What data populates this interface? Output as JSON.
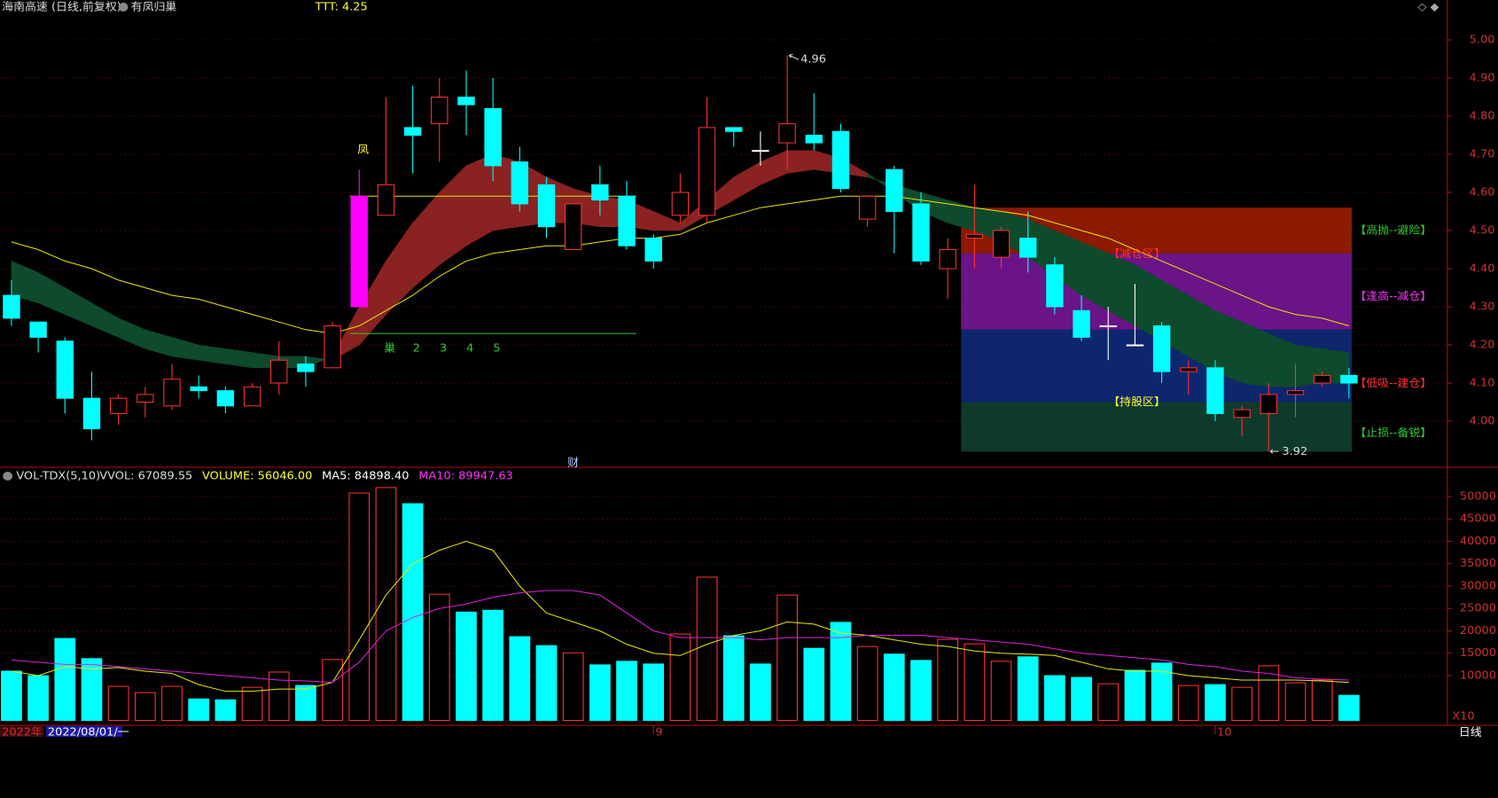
{
  "chart_data": [
    {
      "type": "candlestick",
      "title": "海南高速 (日线,前复权)",
      "subtitle": "有凤归巢",
      "indicator": "TTT: 4.25",
      "open": [
        4.33,
        4.26,
        4.21,
        4.06,
        4.02,
        4.05,
        4.04,
        4.09,
        4.08,
        4.04,
        4.1,
        4.15,
        4.14,
        4.3,
        4.54,
        4.77,
        4.78,
        4.85,
        4.82,
        4.68,
        4.62,
        4.45,
        4.62,
        4.59,
        4.48,
        4.54,
        4.54,
        4.77,
        4.71,
        4.73,
        4.75,
        4.76,
        4.53,
        4.66,
        4.57,
        4.4,
        4.48,
        4.43,
        4.48,
        4.41,
        4.29,
        4.25,
        4.2,
        4.25,
        4.13,
        4.14,
        4.01,
        4.02,
        4.07,
        4.1,
        4.12
      ],
      "high": [
        4.37,
        4.26,
        4.22,
        4.13,
        4.07,
        4.09,
        4.15,
        4.12,
        4.09,
        4.1,
        4.21,
        4.17,
        4.26,
        4.66,
        4.85,
        4.88,
        4.9,
        4.92,
        4.9,
        4.72,
        4.64,
        4.57,
        4.67,
        4.63,
        4.49,
        4.65,
        4.85,
        4.77,
        4.76,
        4.96,
        4.86,
        4.78,
        4.59,
        4.67,
        4.6,
        4.48,
        4.62,
        4.51,
        4.55,
        4.43,
        4.33,
        4.3,
        4.36,
        4.26,
        4.16,
        4.16,
        4.04,
        4.1,
        4.15,
        4.13,
        4.14
      ],
      "low": [
        4.25,
        4.18,
        4.02,
        3.95,
        3.99,
        4.01,
        4.03,
        4.06,
        4.02,
        4.04,
        4.07,
        4.09,
        4.14,
        4.3,
        4.54,
        4.65,
        4.68,
        4.75,
        4.63,
        4.55,
        4.48,
        4.45,
        4.54,
        4.45,
        4.4,
        4.52,
        4.52,
        4.72,
        4.67,
        4.66,
        4.71,
        4.6,
        4.51,
        4.44,
        4.41,
        4.32,
        4.4,
        4.4,
        4.39,
        4.28,
        4.21,
        4.16,
        4.2,
        4.1,
        4.07,
        4.0,
        3.96,
        3.92,
        4.01,
        4.09,
        4.06
      ],
      "close": [
        4.27,
        4.22,
        4.06,
        3.98,
        4.06,
        4.07,
        4.11,
        4.08,
        4.04,
        4.09,
        4.16,
        4.13,
        4.25,
        4.59,
        4.62,
        4.75,
        4.85,
        4.83,
        4.67,
        4.57,
        4.51,
        4.57,
        4.58,
        4.46,
        4.42,
        4.6,
        4.77,
        4.76,
        4.71,
        4.78,
        4.73,
        4.61,
        4.59,
        4.55,
        4.42,
        4.45,
        4.49,
        4.5,
        4.43,
        4.3,
        4.22,
        4.25,
        4.2,
        4.13,
        4.14,
        4.02,
        4.03,
        4.07,
        4.08,
        4.12,
        4.1
      ],
      "colors": {
        "up": "#ff3232",
        "down": "#00ffff",
        "flat": "#ffffff",
        "signal": "#ff00ff"
      },
      "signal_index": 13,
      "ma": {
        "color": "#e8e800",
        "values": [
          4.47,
          4.45,
          4.42,
          4.4,
          4.37,
          4.35,
          4.33,
          4.32,
          4.3,
          4.28,
          4.26,
          4.24,
          4.23,
          4.25,
          4.29,
          4.33,
          4.38,
          4.42,
          4.44,
          4.45,
          4.46,
          4.46,
          4.47,
          4.48,
          4.48,
          4.49,
          4.52,
          4.54,
          4.56,
          4.57,
          4.58,
          4.59,
          4.59,
          4.59,
          4.58,
          4.57,
          4.56,
          4.55,
          4.54,
          4.52,
          4.5,
          4.48,
          4.45,
          4.42,
          4.39,
          4.36,
          4.33,
          4.3,
          4.28,
          4.27,
          4.25
        ]
      },
      "band": {
        "up_color": "#8a2222",
        "down_color": "#0e4a2c",
        "fast": [
          4.33,
          4.31,
          4.28,
          4.25,
          4.22,
          4.19,
          4.17,
          4.16,
          4.15,
          4.14,
          4.14,
          4.14,
          4.17,
          4.3,
          4.42,
          4.52,
          4.6,
          4.67,
          4.7,
          4.68,
          4.64,
          4.61,
          4.59,
          4.58,
          4.55,
          4.52,
          4.58,
          4.64,
          4.68,
          4.71,
          4.71,
          4.69,
          4.65,
          4.6,
          4.55,
          4.52,
          4.5,
          4.47,
          4.43,
          4.38,
          4.33,
          4.29,
          4.25,
          4.21,
          4.17,
          4.13,
          4.1,
          4.09,
          4.09,
          4.1,
          4.1
        ],
        "slow": [
          4.42,
          4.39,
          4.35,
          4.31,
          4.27,
          4.24,
          4.22,
          4.2,
          4.19,
          4.18,
          4.17,
          4.17,
          4.16,
          4.2,
          4.28,
          4.35,
          4.41,
          4.46,
          4.5,
          4.51,
          4.52,
          4.52,
          4.51,
          4.51,
          4.5,
          4.5,
          4.54,
          4.58,
          4.62,
          4.65,
          4.66,
          4.65,
          4.64,
          4.62,
          4.6,
          4.58,
          4.56,
          4.55,
          4.53,
          4.5,
          4.47,
          4.44,
          4.41,
          4.37,
          4.33,
          4.29,
          4.26,
          4.23,
          4.2,
          4.19,
          4.18
        ]
      },
      "ylim": [
        3.9,
        5.08
      ],
      "yticks": [
        {
          "value": 4.0,
          "label": "4.00"
        },
        {
          "value": 4.1,
          "label": "4.10"
        },
        {
          "value": 4.2,
          "label": "4.20"
        },
        {
          "value": 4.3,
          "label": "4.30"
        },
        {
          "value": 4.4,
          "label": "4.40"
        },
        {
          "value": 4.5,
          "label": "4.50"
        },
        {
          "value": 4.6,
          "label": "4.60"
        },
        {
          "value": 4.7,
          "label": "4.70"
        },
        {
          "value": 4.8,
          "label": "4.80"
        },
        {
          "value": 4.9,
          "label": "4.90"
        },
        {
          "value": 5.0,
          "label": "5.00"
        }
      ],
      "grid": true,
      "nest_line": {
        "value": 4.59,
        "from": 13,
        "to": 23,
        "color": "#e8e800"
      },
      "base_line": {
        "value": 4.23,
        "from": 13,
        "to": 23,
        "color": "#33cc33"
      },
      "signal_label": "凤",
      "nest_labels": [
        "巢",
        "2",
        "3",
        "4",
        "5"
      ],
      "nest_start": 14,
      "peak": {
        "index": 29,
        "value": 4.96
      },
      "trough": {
        "index": 47,
        "value": 3.92
      },
      "mark_label": "财",
      "zones": {
        "from": 36,
        "to": 50,
        "levels": [
          4.56,
          4.44,
          4.24,
          4.05,
          3.92
        ],
        "colors": [
          "#8b1a00",
          "#6a1488",
          "#0d266e",
          "#0e3a2c"
        ],
        "labels": [
          "【高抛--避险】",
          "【逢高--减仓】",
          "【低吸--建仓】",
          "【止损--备锐】"
        ],
        "label_colors": [
          "#33cc33",
          "#ff33ff",
          "#ff3232",
          "#33cc33"
        ],
        "inner_labels": [
          "【减仓区】",
          "【持股区】"
        ],
        "inner_colors": [
          "#ff3232",
          "#ffff33"
        ]
      }
    },
    {
      "type": "volume",
      "title": "VOL-TDX(5,10)",
      "readouts": [
        "VVOL: 67089.55",
        "VOLUME: 56046.00",
        "MA5: 84898.40",
        "MA10: 89947.63"
      ],
      "readout_colors": [
        "#dddddd",
        "#ffff33",
        "#ffffff",
        "#ff33ff"
      ],
      "values": [
        11000,
        10000,
        18300,
        13800,
        7600,
        6200,
        7600,
        4800,
        4600,
        7400,
        10800,
        7800,
        13600,
        50800,
        52000,
        48400,
        28200,
        24200,
        24600,
        18700,
        16700,
        15100,
        12400,
        13200,
        12600,
        19300,
        32000,
        18900,
        12600,
        28000,
        16100,
        21900,
        16500,
        14800,
        13400,
        18100,
        17100,
        13200,
        14200,
        10000,
        9600,
        8200,
        11200,
        12800,
        7800,
        8000,
        7400,
        12200,
        8400,
        9000,
        5600
      ],
      "series": [
        {
          "name": "MA5",
          "color": "#e8e800",
          "values": [
            11000,
            10000,
            12000,
            11500,
            11800,
            11000,
            10500,
            8000,
            6500,
            6500,
            7000,
            7000,
            8500,
            18000,
            28000,
            35000,
            38000,
            40000,
            38000,
            30000,
            24000,
            22000,
            20000,
            17000,
            15000,
            14500,
            17000,
            19000,
            20000,
            22000,
            21500,
            19500,
            19000,
            18000,
            17000,
            16500,
            15500,
            15000,
            14800,
            14500,
            13000,
            11500,
            11000,
            11000,
            10000,
            9500,
            9000,
            9000,
            9000,
            8800,
            8500
          ]
        },
        {
          "name": "MA10",
          "color": "#e020e0",
          "values": [
            13500,
            13000,
            12500,
            12500,
            12000,
            11500,
            11000,
            10500,
            10000,
            9500,
            9000,
            8800,
            8500,
            13000,
            20000,
            23000,
            25000,
            26000,
            27500,
            28500,
            29000,
            29000,
            28000,
            24000,
            20000,
            18500,
            18500,
            18500,
            18000,
            18500,
            18500,
            18500,
            19000,
            19000,
            19000,
            18500,
            18000,
            17500,
            17000,
            16000,
            15000,
            14500,
            14000,
            13500,
            12500,
            12000,
            11000,
            10500,
            9500,
            9200,
            9000
          ]
        }
      ],
      "ylim": [
        0,
        55000
      ],
      "yticks": [
        10000,
        15000,
        20000,
        25000,
        30000,
        35000,
        40000,
        45000,
        50000
      ],
      "grid": true,
      "scale_label": "X10"
    },
    {
      "type": "axis",
      "labels": [
        "2022年",
        "2022/08/01/一",
        "9",
        "10",
        "日线"
      ],
      "label_index": [
        null,
        null,
        24,
        45,
        null
      ]
    }
  ]
}
